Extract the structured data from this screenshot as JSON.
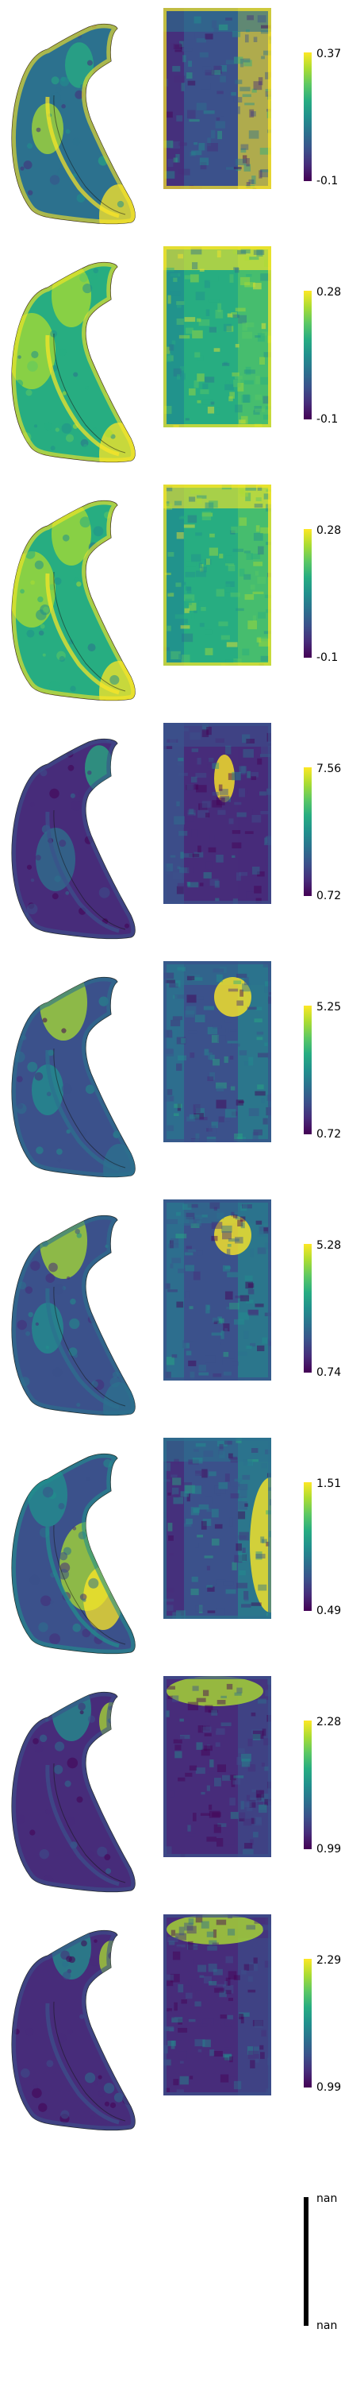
{
  "colormap": {
    "name": "viridis",
    "stops": [
      "#440154",
      "#472c7a",
      "#3b518b",
      "#2c718e",
      "#21908d",
      "#27ad81",
      "#5cc863",
      "#aadc32",
      "#fde725"
    ]
  },
  "panels": [
    {
      "max_label": "0.37",
      "min_label": "-0.1",
      "pattern": "edgebright"
    },
    {
      "max_label": "0.28",
      "min_label": "-0.1",
      "pattern": "noisy"
    },
    {
      "max_label": "0.28",
      "min_label": "-0.1",
      "pattern": "noisy"
    },
    {
      "max_label": "7.56",
      "min_label": "0.72",
      "pattern": "dark"
    },
    {
      "max_label": "5.25",
      "min_label": "0.72",
      "pattern": "mid"
    },
    {
      "max_label": "5.28",
      "min_label": "0.74",
      "pattern": "mid"
    },
    {
      "max_label": "1.51",
      "min_label": "0.49",
      "pattern": "rightbright"
    },
    {
      "max_label": "2.28",
      "min_label": "0.99",
      "pattern": "topbright"
    },
    {
      "max_label": "2.29",
      "min_label": "0.99",
      "pattern": "topbright"
    },
    {
      "max_label": "nan",
      "min_label": "nan",
      "pattern": "empty"
    }
  ]
}
